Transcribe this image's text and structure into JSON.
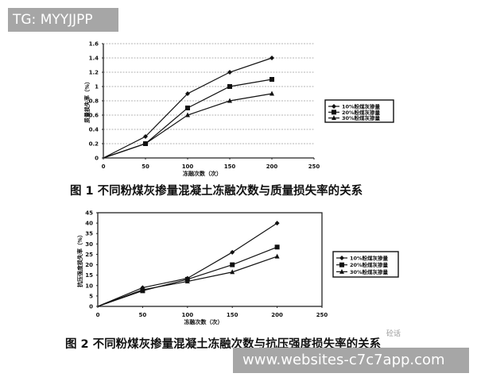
{
  "watermarks": {
    "top": "TG: MYYJJPP",
    "bottom": "www.websites-c7c7app.com",
    "brand_corner": "砼话"
  },
  "chart_data": [
    {
      "type": "line",
      "title": "图 1 不同粉煤灰掺量混凝土冻融次数与质量损失率的关系",
      "xlabel": "冻融次数（次）",
      "ylabel": "质量损失率（%）",
      "x": [
        0,
        50,
        100,
        150,
        200
      ],
      "xticks": [
        0,
        50,
        100,
        150,
        200,
        250
      ],
      "yticks": [
        0,
        0.2,
        0.4,
        0.6,
        0.8,
        1,
        1.2,
        1.4,
        1.6
      ],
      "xlim": [
        0,
        250
      ],
      "ylim": [
        0,
        1.6
      ],
      "grid": "horizontal dashed",
      "legend_position": "right",
      "series": [
        {
          "name": "10%粉煤灰掺量",
          "marker": "diamond",
          "values": [
            0,
            0.3,
            0.9,
            1.2,
            1.4
          ]
        },
        {
          "name": "20%粉煤灰掺量",
          "marker": "square",
          "values": [
            0,
            0.2,
            0.7,
            1.0,
            1.1
          ]
        },
        {
          "name": "30%粉煤灰掺量",
          "marker": "triangle",
          "values": [
            0,
            0.2,
            0.6,
            0.8,
            0.9
          ]
        }
      ]
    },
    {
      "type": "line",
      "title": "图 2 不同粉煤灰掺量混凝土冻融次数与抗压强度损失率的关系",
      "xlabel": "冻融次数（次）",
      "ylabel": "抗压强度损失率（%）",
      "x": [
        0,
        50,
        100,
        150,
        200
      ],
      "xticks": [
        0,
        50,
        100,
        150,
        200,
        250
      ],
      "yticks": [
        0,
        5,
        10,
        15,
        20,
        25,
        30,
        35,
        40,
        45
      ],
      "xlim": [
        0,
        250
      ],
      "ylim": [
        0,
        45
      ],
      "grid": "none",
      "legend_position": "right",
      "series": [
        {
          "name": "10%粉煤灰掺量",
          "marker": "diamond",
          "values": [
            0,
            9,
            13.5,
            26,
            40
          ]
        },
        {
          "name": "20%粉煤灰掺量",
          "marker": "square",
          "values": [
            0,
            7.5,
            13,
            20,
            28.5
          ]
        },
        {
          "name": "30%粉煤灰掺量",
          "marker": "triangle",
          "values": [
            0,
            8,
            12,
            16.5,
            24
          ]
        }
      ]
    }
  ]
}
